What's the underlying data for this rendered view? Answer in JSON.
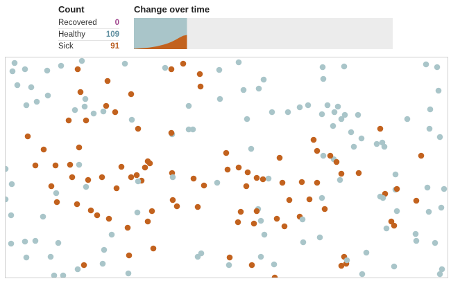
{
  "count": {
    "title": "Count",
    "rows": [
      {
        "label": "Recovered",
        "value": "0",
        "color": "#a0468e"
      },
      {
        "label": "Healthy",
        "value": "109",
        "color": "#5f8fa0"
      },
      {
        "label": "Sick",
        "value": "91",
        "color": "#b85a1b"
      }
    ]
  },
  "change": {
    "title": "Change over time",
    "colors": {
      "healthy": "#a9c5c9",
      "sick": "#c2621e",
      "background": "#ececec"
    }
  },
  "chart_data": {
    "type": "area",
    "title": "Change over time",
    "series": [
      {
        "name": "Sick",
        "values": [
          0.01,
          0.02,
          0.03,
          0.04,
          0.05,
          0.07,
          0.09,
          0.12,
          0.15,
          0.19,
          0.24,
          0.3,
          0.37,
          0.43,
          0.455
        ]
      },
      {
        "name": "Healthy",
        "values": [
          0.99,
          0.98,
          0.97,
          0.96,
          0.95,
          0.93,
          0.91,
          0.88,
          0.85,
          0.81,
          0.76,
          0.7,
          0.63,
          0.57,
          0.545
        ]
      }
    ],
    "progress": 0.205
  },
  "simulation": {
    "colors": {
      "healthy": "#a9c5c9",
      "sick": "#c2621e"
    },
    "dots": [
      [
        "h",
        13,
        8
      ],
      [
        "h",
        10,
        20
      ],
      [
        "h",
        28,
        17
      ],
      [
        "h",
        60,
        19
      ],
      [
        "h",
        80,
        12
      ],
      [
        "h",
        110,
        5
      ],
      [
        "h",
        172,
        9
      ],
      [
        "s",
        104,
        17
      ],
      [
        "h",
        230,
        15
      ],
      [
        "s",
        239,
        17
      ],
      [
        "s",
        256,
        9
      ],
      [
        "s",
        280,
        24
      ],
      [
        "s",
        281,
        42
      ],
      [
        "h",
        308,
        18
      ],
      [
        "h",
        336,
        7
      ],
      [
        "h",
        457,
        14
      ],
      [
        "h",
        488,
        13
      ],
      [
        "h",
        458,
        31
      ],
      [
        "h",
        606,
        10
      ],
      [
        "h",
        622,
        14
      ],
      [
        "h",
        17,
        40
      ],
      [
        "h",
        37,
        43
      ],
      [
        "h",
        61,
        55
      ],
      [
        "h",
        30,
        69
      ],
      [
        "h",
        45,
        64
      ],
      [
        "s",
        108,
        50
      ],
      [
        "s",
        147,
        34
      ],
      [
        "s",
        181,
        53
      ],
      [
        "h",
        115,
        60
      ],
      [
        "h",
        100,
        76
      ],
      [
        "h",
        114,
        71
      ],
      [
        "s",
        145,
        70
      ],
      [
        "h",
        264,
        70
      ],
      [
        "h",
        309,
        60
      ],
      [
        "h",
        343,
        47
      ],
      [
        "h",
        365,
        45
      ],
      [
        "h",
        372,
        32
      ],
      [
        "h",
        424,
        72
      ],
      [
        "h",
        407,
        79
      ],
      [
        "h",
        384,
        79
      ],
      [
        "h",
        436,
        69
      ],
      [
        "h",
        456,
        82
      ],
      [
        "h",
        474,
        79
      ],
      [
        "h",
        479,
        71
      ],
      [
        "h",
        464,
        69
      ],
      [
        "h",
        484,
        89
      ],
      [
        "h",
        489,
        83
      ],
      [
        "h",
        508,
        83
      ],
      [
        "h",
        612,
        75
      ],
      [
        "h",
        624,
        48
      ],
      [
        "h",
        579,
        89
      ],
      [
        "s",
        91,
        91
      ],
      [
        "s",
        116,
        91
      ],
      [
        "h",
        127,
        81
      ],
      [
        "h",
        141,
        78
      ],
      [
        "s",
        158,
        79
      ],
      [
        "h",
        182,
        90
      ],
      [
        "s",
        191,
        103
      ],
      [
        "h",
        240,
        111
      ],
      [
        "h",
        270,
        104
      ],
      [
        "s",
        239,
        109
      ],
      [
        "h",
        264,
        104
      ],
      [
        "h",
        348,
        89
      ],
      [
        "h",
        472,
        99
      ],
      [
        "h",
        498,
        108
      ],
      [
        "h",
        513,
        117
      ],
      [
        "h",
        535,
        125
      ],
      [
        "h",
        543,
        123
      ],
      [
        "h",
        546,
        129
      ],
      [
        "s",
        540,
        103
      ],
      [
        "s",
        599,
        142
      ],
      [
        "h",
        611,
        103
      ],
      [
        "h",
        626,
        115
      ],
      [
        "s",
        32,
        114
      ],
      [
        "s",
        55,
        133
      ],
      [
        "s",
        106,
        130
      ],
      [
        "s",
        318,
        138
      ],
      [
        "h",
        354,
        132
      ],
      [
        "s",
        444,
        119
      ],
      [
        "s",
        449,
        135
      ],
      [
        "h",
        458,
        142
      ],
      [
        "h",
        473,
        147
      ],
      [
        "s",
        468,
        142
      ],
      [
        "s",
        477,
        151
      ],
      [
        "h",
        502,
        129
      ],
      [
        "h",
        0,
        161
      ],
      [
        "h",
        9,
        183
      ],
      [
        "s",
        43,
        156
      ],
      [
        "s",
        72,
        156
      ],
      [
        "s",
        93,
        155
      ],
      [
        "h",
        106,
        155
      ],
      [
        "s",
        96,
        173
      ],
      [
        "s",
        119,
        177
      ],
      [
        "s",
        139,
        173
      ],
      [
        "s",
        167,
        158
      ],
      [
        "s",
        181,
        173
      ],
      [
        "s",
        205,
        150
      ],
      [
        "s",
        208,
        153
      ],
      [
        "s",
        201,
        159
      ],
      [
        "s",
        189,
        170
      ],
      [
        "s",
        196,
        178
      ],
      [
        "h",
        191,
        179
      ],
      [
        "s",
        240,
        167
      ],
      [
        "h",
        241,
        173
      ],
      [
        "s",
        271,
        175
      ],
      [
        "s",
        286,
        185
      ],
      [
        "h",
        305,
        181
      ],
      [
        "s",
        320,
        162
      ],
      [
        "s",
        336,
        159
      ],
      [
        "s",
        349,
        166
      ],
      [
        "s",
        347,
        186
      ],
      [
        "s",
        362,
        174
      ],
      [
        "h",
        379,
        175
      ],
      [
        "s",
        371,
        176
      ],
      [
        "s",
        399,
        181
      ],
      [
        "s",
        395,
        145
      ],
      [
        "s",
        427,
        180
      ],
      [
        "s",
        449,
        181
      ],
      [
        "s",
        484,
        168
      ],
      [
        "h",
        482,
        177
      ],
      [
        "s",
        509,
        167
      ],
      [
        "h",
        562,
        169
      ],
      [
        "h",
        562,
        191
      ],
      [
        "s",
        564,
        190
      ],
      [
        "h",
        608,
        188
      ],
      [
        "h",
        632,
        190
      ],
      [
        "h",
        0,
        205
      ],
      [
        "s",
        66,
        186
      ],
      [
        "h",
        73,
        196
      ],
      [
        "s",
        74,
        209
      ],
      [
        "s",
        103,
        212
      ],
      [
        "s",
        123,
        221
      ],
      [
        "s",
        132,
        228
      ],
      [
        "s",
        160,
        189
      ],
      [
        "s",
        149,
        233
      ],
      [
        "h",
        116,
        187
      ],
      [
        "s",
        247,
        215
      ],
      [
        "s",
        277,
        216
      ],
      [
        "s",
        241,
        206
      ],
      [
        "s",
        409,
        206
      ],
      [
        "h",
        456,
        203
      ],
      [
        "s",
        438,
        205
      ],
      [
        "s",
        460,
        219
      ],
      [
        "s",
        547,
        197
      ],
      [
        "h",
        540,
        201
      ],
      [
        "h",
        544,
        203
      ],
      [
        "s",
        592,
        207
      ],
      [
        "h",
        628,
        217
      ],
      [
        "h",
        610,
        223
      ],
      [
        "h",
        8,
        228
      ],
      [
        "h",
        54,
        230
      ],
      [
        "h",
        190,
        224
      ],
      [
        "s",
        211,
        222
      ],
      [
        "s",
        176,
        246
      ],
      [
        "s",
        205,
        237
      ],
      [
        "s",
        339,
        223
      ],
      [
        "s",
        335,
        238
      ],
      [
        "s",
        358,
        240
      ],
      [
        "h",
        364,
        219
      ],
      [
        "h",
        368,
        236
      ],
      [
        "h",
        373,
        256
      ],
      [
        "s",
        362,
        222
      ],
      [
        "s",
        391,
        233
      ],
      [
        "s",
        402,
        244
      ],
      [
        "s",
        424,
        230
      ],
      [
        "h",
        428,
        234
      ],
      [
        "h",
        549,
        247
      ],
      [
        "s",
        556,
        237
      ],
      [
        "s",
        560,
        243
      ],
      [
        "h",
        564,
        222
      ],
      [
        "h",
        591,
        255
      ],
      [
        "h",
        8,
        269
      ],
      [
        "h",
        28,
        266
      ],
      [
        "h",
        43,
        265
      ],
      [
        "h",
        76,
        268
      ],
      [
        "h",
        142,
        278
      ],
      [
        "h",
        153,
        256
      ],
      [
        "s",
        213,
        276
      ],
      [
        "h",
        277,
        288
      ],
      [
        "s",
        323,
        289
      ],
      [
        "h",
        429,
        267
      ],
      [
        "h",
        453,
        260
      ],
      [
        "h",
        520,
        282
      ],
      [
        "s",
        488,
        288
      ],
      [
        "h",
        592,
        265
      ],
      [
        "h",
        619,
        268
      ],
      [
        "h",
        30,
        289
      ],
      [
        "h",
        65,
        288
      ],
      [
        "s",
        113,
        300
      ],
      [
        "h",
        140,
        298
      ],
      [
        "s",
        178,
        286
      ],
      [
        "h",
        282,
        283
      ],
      [
        "h",
        322,
        300
      ],
      [
        "s",
        355,
        300
      ],
      [
        "h",
        368,
        288
      ],
      [
        "h",
        387,
        299
      ],
      [
        "s",
        484,
        301
      ],
      [
        "s",
        491,
        298
      ],
      [
        "h",
        492,
        293
      ],
      [
        "h",
        560,
        302
      ],
      [
        "h",
        70,
        315
      ],
      [
        "h",
        83,
        315
      ],
      [
        "h",
        104,
        306
      ],
      [
        "h",
        177,
        312
      ],
      [
        "s",
        388,
        318
      ],
      [
        "h",
        514,
        313
      ],
      [
        "h",
        626,
        313
      ],
      [
        "h",
        629,
        306
      ]
    ]
  }
}
